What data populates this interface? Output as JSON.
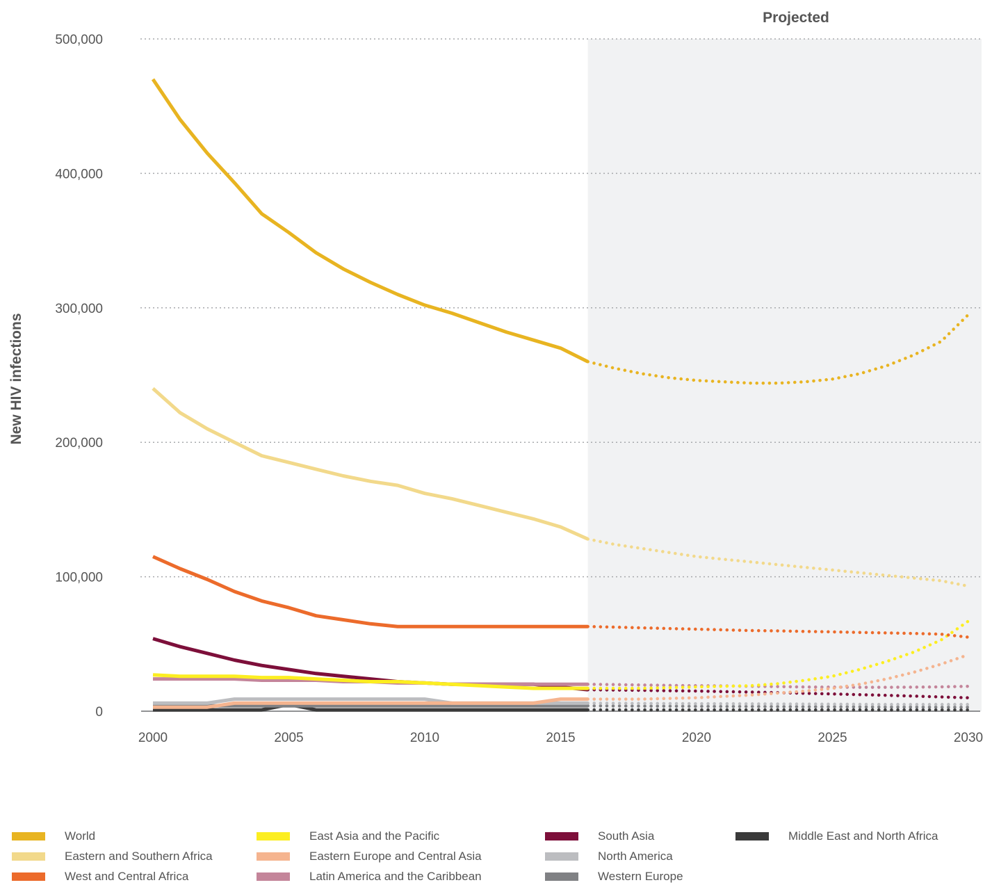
{
  "chart_data": {
    "type": "line",
    "title": "",
    "xlabel": "",
    "ylabel": "New HIV infections",
    "projection_label": "Projected",
    "projection_start": 2016,
    "xlim": [
      2000,
      2030
    ],
    "ylim": [
      0,
      500000
    ],
    "x_ticks": [
      2000,
      2005,
      2010,
      2015,
      2020,
      2025,
      2030
    ],
    "x_tick_labels": [
      "2000",
      "2005",
      "2010",
      "2015",
      "2020",
      "2025",
      "2030"
    ],
    "y_ticks": [
      0,
      100000,
      200000,
      300000,
      400000,
      500000
    ],
    "y_tick_labels": [
      "0",
      "100,000",
      "200,000",
      "300,000",
      "400,000",
      "500,000"
    ],
    "grid": "horizontal dotted",
    "legend_position": "bottom",
    "actual_years": [
      2000,
      2001,
      2002,
      2003,
      2004,
      2005,
      2006,
      2007,
      2008,
      2009,
      2010,
      2011,
      2012,
      2013,
      2014,
      2015,
      2016
    ],
    "projected_years": [
      2016,
      2017,
      2018,
      2019,
      2020,
      2021,
      2022,
      2023,
      2024,
      2025,
      2026,
      2027,
      2028,
      2029,
      2030
    ],
    "series": [
      {
        "name": "World",
        "color": "#e8b421",
        "actual": [
          470000,
          440000,
          415000,
          393000,
          370000,
          356000,
          341000,
          329000,
          319000,
          310000,
          302000,
          296000,
          289000,
          282000,
          276000,
          270000,
          260000
        ],
        "projected": [
          260000,
          255000,
          251000,
          248000,
          246000,
          245000,
          244000,
          244000,
          245000,
          247000,
          251000,
          257000,
          265000,
          275000,
          295000
        ]
      },
      {
        "name": "Eastern and Southern Africa",
        "color": "#f2d98b",
        "actual": [
          240000,
          222000,
          210000,
          200000,
          190000,
          185000,
          180000,
          175000,
          171000,
          168000,
          162000,
          158000,
          153000,
          148000,
          143000,
          137000,
          128000
        ],
        "projected": [
          128000,
          124000,
          121000,
          118000,
          115000,
          113000,
          111000,
          109000,
          107000,
          105000,
          103000,
          101000,
          99000,
          97000,
          93000
        ]
      },
      {
        "name": "West and Central Africa",
        "color": "#ec6b2b",
        "actual": [
          115000,
          106000,
          98000,
          89000,
          82000,
          77000,
          71000,
          68000,
          65000,
          63000,
          63000,
          63000,
          63000,
          63000,
          63000,
          63000,
          63000
        ],
        "projected": [
          63000,
          62500,
          62000,
          61500,
          61000,
          60500,
          60000,
          59700,
          59300,
          59000,
          58600,
          58200,
          57800,
          57300,
          55000
        ]
      },
      {
        "name": "East Asia and the Pacific",
        "color": "#fcee21",
        "actual": [
          27000,
          26000,
          26000,
          26000,
          25000,
          25000,
          24000,
          23000,
          22000,
          22000,
          21000,
          20000,
          19000,
          18000,
          17000,
          17000,
          17000
        ],
        "projected": [
          17000,
          17000,
          17000,
          17500,
          18000,
          18500,
          19000,
          20500,
          23000,
          26000,
          31000,
          37000,
          44000,
          53000,
          67000
        ]
      },
      {
        "name": "Eastern Europe and Central Asia",
        "color": "#f5b48f",
        "actual": [
          3000,
          3000,
          3000,
          6000,
          6000,
          6000,
          6000,
          6000,
          6000,
          6000,
          6000,
          6000,
          6000,
          6000,
          6000,
          9000,
          9000
        ],
        "projected": [
          9000,
          9000,
          9000,
          9500,
          10000,
          11000,
          12000,
          13500,
          15000,
          17000,
          20000,
          24000,
          29000,
          35000,
          42000
        ]
      },
      {
        "name": "Latin America and the Caribbean",
        "color": "#c4859a",
        "actual": [
          24000,
          24000,
          24000,
          24000,
          23000,
          23000,
          23000,
          22000,
          22000,
          21000,
          21000,
          20000,
          20000,
          20000,
          20000,
          20000,
          20000
        ],
        "projected": [
          20000,
          19800,
          19500,
          19200,
          19000,
          18800,
          18500,
          18300,
          18000,
          17900,
          17800,
          17800,
          17900,
          18100,
          18500
        ]
      },
      {
        "name": "South Asia",
        "color": "#7d0f3a",
        "actual": [
          54000,
          48000,
          43000,
          38000,
          34000,
          31000,
          28000,
          26000,
          24000,
          22000,
          21000,
          20000,
          20000,
          20000,
          20000,
          18000,
          16000
        ],
        "projected": [
          16000,
          15700,
          15500,
          15200,
          15000,
          14600,
          14200,
          13800,
          13300,
          12800,
          12300,
          11800,
          11200,
          10600,
          10000
        ]
      },
      {
        "name": "North America",
        "color": "#bcbdc0",
        "actual": [
          6000,
          6000,
          6000,
          9000,
          9000,
          9000,
          9000,
          9000,
          9000,
          9000,
          9000,
          6000,
          6000,
          6000,
          6000,
          6000,
          6000
        ],
        "projected": [
          6000,
          5900,
          5800,
          5700,
          5600,
          5600,
          5500,
          5400,
          5300,
          5200,
          5100,
          5000,
          5000,
          5000,
          5000
        ]
      },
      {
        "name": "Western Europe",
        "color": "#808184",
        "actual": [
          4000,
          4000,
          4000,
          4000,
          4000,
          4000,
          4000,
          4000,
          4000,
          4000,
          4000,
          4000,
          4000,
          4000,
          4000,
          4000,
          4000
        ],
        "projected": [
          4000,
          3900,
          3800,
          3700,
          3600,
          3500,
          3500,
          3400,
          3300,
          3300,
          3200,
          3100,
          3100,
          3000,
          3000
        ]
      },
      {
        "name": "Middle East and North Africa",
        "color": "#3a3a3a",
        "actual": [
          1000,
          1000,
          1000,
          1000,
          1000,
          5000,
          1000,
          1000,
          1000,
          1000,
          1000,
          1000,
          1000,
          1000,
          1000,
          1000,
          1000
        ],
        "projected": [
          1000,
          1000,
          1000,
          1000,
          1000,
          1000,
          1000,
          1000,
          1000,
          1000,
          1000,
          1000,
          1000,
          1000,
          1000
        ]
      }
    ]
  },
  "legend": [
    {
      "label": "World",
      "color": "#e8b421"
    },
    {
      "label": "Eastern and Southern Africa",
      "color": "#f2d98b"
    },
    {
      "label": "West and Central Africa",
      "color": "#ec6b2b"
    },
    {
      "label": "East Asia and the Pacific",
      "color": "#fcee21"
    },
    {
      "label": "Eastern Europe and Central Asia",
      "color": "#f5b48f"
    },
    {
      "label": "Latin America and the Caribbean",
      "color": "#c4859a"
    },
    {
      "label": "South Asia",
      "color": "#7d0f3a"
    },
    {
      "label": "North America",
      "color": "#bcbdc0"
    },
    {
      "label": "Western Europe",
      "color": "#808184"
    },
    {
      "label": "Middle East and North Africa",
      "color": "#3a3a3a"
    }
  ]
}
